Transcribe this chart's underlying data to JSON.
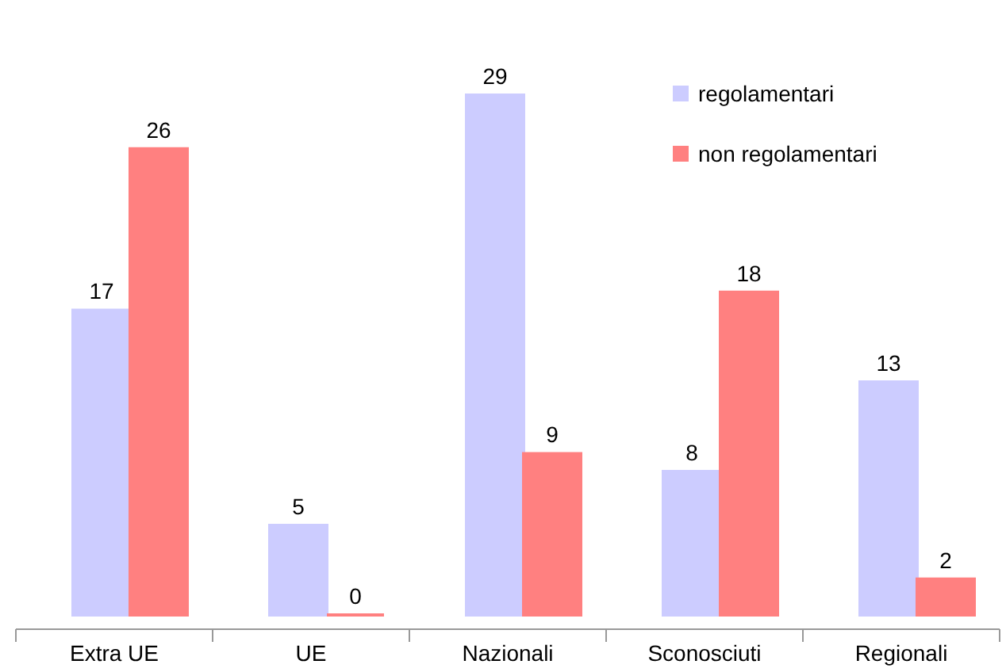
{
  "chart_data": {
    "type": "bar",
    "categories": [
      "Extra UE",
      "UE",
      "Nazionali",
      "Sconosciuti",
      "Regionali"
    ],
    "series": [
      {
        "name": "regolamentari",
        "color": "#ccccff",
        "values": [
          17,
          5,
          29,
          8,
          13
        ]
      },
      {
        "name": "non regolamentari",
        "color": "#ff8080",
        "values": [
          26,
          0,
          9,
          18,
          2
        ]
      }
    ],
    "data_labels": true,
    "legend": "top right"
  }
}
